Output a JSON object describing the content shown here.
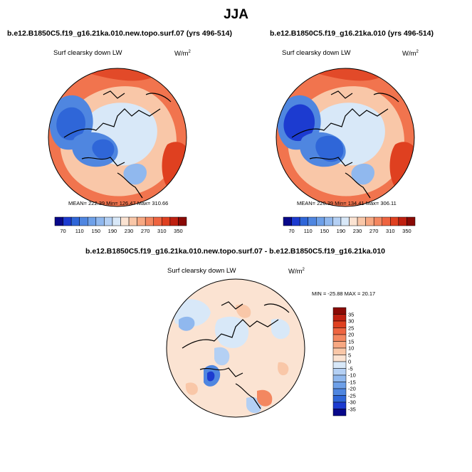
{
  "title": "JJA",
  "chart_data": [
    {
      "type": "heatmap",
      "projection": "north-polar-stereographic",
      "title": "b.e12.B1850C5.f19_g16.21ka.010.new.topo.surf.07 (yrs 496-514)",
      "variable": "Surf clearsky down LW",
      "units": "W/m",
      "units_sup": "2",
      "stats": {
        "mean": "222.39",
        "min": "126.47",
        "max": "310.66"
      },
      "stats_text": "MEAN= 222.39  Min= 126.47  Max= 310.66",
      "colorbar": {
        "orientation": "horizontal",
        "levels": [
          70,
          90,
          110,
          130,
          150,
          170,
          190,
          210,
          230,
          250,
          270,
          290,
          310,
          330,
          350
        ],
        "tick_labels": [
          "70",
          "110",
          "150",
          "190",
          "230",
          "270",
          "310",
          "350"
        ],
        "colors": [
          "#08088a",
          "#1c3bd0",
          "#2f66d8",
          "#4f86e0",
          "#6ea0e8",
          "#90b8ee",
          "#b4d0f4",
          "#d8e8f8",
          "#fbe3d2",
          "#f9c7a8",
          "#f7a882",
          "#f38760",
          "#ee6440",
          "#df4020",
          "#bf2010",
          "#8a0a05"
        ]
      }
    },
    {
      "type": "heatmap",
      "projection": "north-polar-stereographic",
      "title": "b.e12.B1850C5.f19_g16.21ka.010 (yrs 496-514)",
      "variable": "Surf clearsky down LW",
      "units": "W/m",
      "units_sup": "2",
      "stats": {
        "mean": "220.39",
        "min": "134.41",
        "max": "306.11"
      },
      "stats_text": "MEAN= 220.39  Min= 134.41  Max= 306.11",
      "colorbar": {
        "orientation": "horizontal",
        "levels": [
          70,
          90,
          110,
          130,
          150,
          170,
          190,
          210,
          230,
          250,
          270,
          290,
          310,
          330,
          350
        ],
        "tick_labels": [
          "70",
          "110",
          "150",
          "190",
          "230",
          "270",
          "310",
          "350"
        ],
        "colors": [
          "#08088a",
          "#1c3bd0",
          "#2f66d8",
          "#4f86e0",
          "#6ea0e8",
          "#90b8ee",
          "#b4d0f4",
          "#d8e8f8",
          "#fbe3d2",
          "#f9c7a8",
          "#f7a882",
          "#f38760",
          "#ee6440",
          "#df4020",
          "#bf2010",
          "#8a0a05"
        ]
      }
    },
    {
      "type": "heatmap",
      "projection": "north-polar-stereographic",
      "title": "b.e12.B1850C5.f19_g16.21ka.010.new.topo.surf.07 - b.e12.B1850C5.f19_g16.21ka.010",
      "variable": "Surf clearsky down LW",
      "units": "W/m",
      "units_sup": "2",
      "stats": {
        "min": "-25.88",
        "max": "20.17"
      },
      "stats_text": "MIN = -25.88 MAX =  20.17",
      "colorbar": {
        "orientation": "vertical",
        "levels": [
          -35,
          -30,
          -25,
          -20,
          -15,
          -10,
          -5,
          0,
          5,
          10,
          15,
          20,
          25,
          30,
          35
        ],
        "tick_labels": [
          "35",
          "30",
          "25",
          "20",
          "15",
          "10",
          "5",
          "0",
          "-5",
          "-10",
          "-15",
          "-20",
          "-25",
          "-30",
          "-35"
        ],
        "colors": [
          "#08088a",
          "#1c3bd0",
          "#2f66d8",
          "#4f86e0",
          "#6ea0e8",
          "#90b8ee",
          "#b4d0f4",
          "#d8e8f8",
          "#fbe3d2",
          "#f9c7a8",
          "#f7a882",
          "#f38760",
          "#ee6440",
          "#df4020",
          "#bf2010",
          "#8a0a05"
        ]
      }
    }
  ]
}
